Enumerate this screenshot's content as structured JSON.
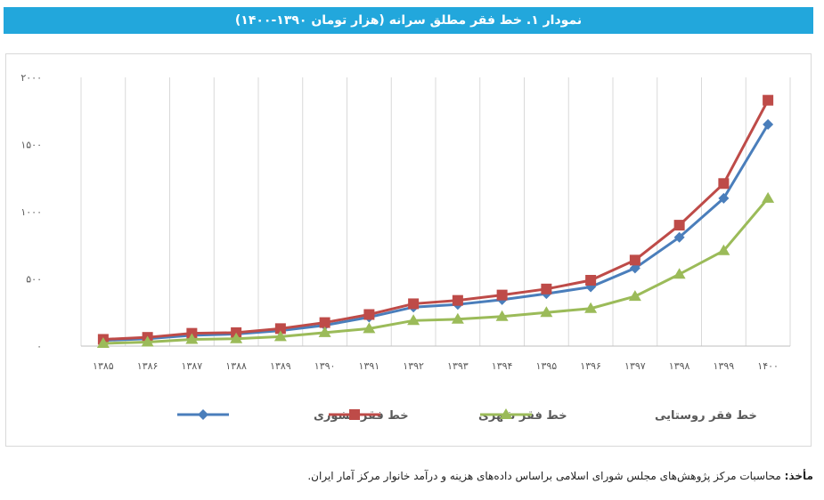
{
  "title": "نمودار ۱. خط فقر مطلق سرانه (هزار تومان ۱۳۹۰-۱۴۰۰)",
  "source": {
    "label": "مأخذ:",
    "text": "محاسبات مرکز پژوهش‌های مجلس شورای اسلامی براساس داده‌های هزینه و درآمد خانوار مرکز آمار ایران."
  },
  "chart_data": {
    "type": "line",
    "x": [
      "۱۳۸۵",
      "۱۳۸۶",
      "۱۳۸۷",
      "۱۳۸۸",
      "۱۳۸۹",
      "۱۳۹۰",
      "۱۳۹۱",
      "۱۳۹۲",
      "۱۳۹۳",
      "۱۳۹۴",
      "۱۳۹۵",
      "۱۳۹۶",
      "۱۳۹۷",
      "۱۳۹۸",
      "۱۳۹۹",
      "۱۴۰۰"
    ],
    "ylim": [
      0,
      2000
    ],
    "yticks": [
      0,
      500,
      1000,
      1500,
      2000
    ],
    "ytick_labels": [
      "۰",
      "۵۰۰",
      "۱۰۰۰",
      "۱۵۰۰",
      "۲۰۰۰"
    ],
    "grid": "vertical",
    "legend": "bottom",
    "series": [
      {
        "name": "خط فقر کشوری",
        "color": "#4a7ebb",
        "marker": "diamond",
        "values": [
          42,
          55,
          80,
          90,
          115,
          155,
          215,
          290,
          310,
          345,
          390,
          440,
          580,
          810,
          1100,
          1650
        ]
      },
      {
        "name": "خط فقر شهری",
        "color": "#be4b48",
        "marker": "square",
        "values": [
          50,
          65,
          95,
          100,
          130,
          175,
          235,
          315,
          340,
          380,
          425,
          490,
          640,
          900,
          1210,
          1830
        ]
      },
      {
        "name": "خط فقر روستایی",
        "color": "#9bbb59",
        "marker": "triangle",
        "values": [
          20,
          30,
          50,
          55,
          70,
          100,
          130,
          190,
          200,
          220,
          250,
          280,
          370,
          535,
          710,
          1100
        ]
      }
    ]
  }
}
